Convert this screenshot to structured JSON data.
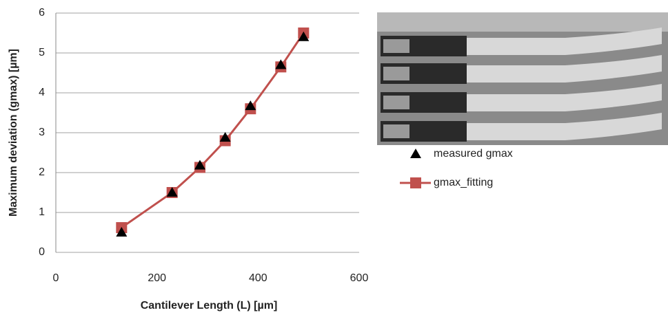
{
  "chart_data": {
    "type": "line",
    "x_label": "Cantilever Length (L) [µm]",
    "y_label": "Maximum deviation (gmax) [µm]",
    "x": [
      130,
      230,
      285,
      335,
      385,
      445,
      490
    ],
    "series": [
      {
        "name": "measured gmax",
        "color": "#000000",
        "marker": "triangle",
        "line": false,
        "values": [
          0.5,
          1.5,
          2.18,
          2.88,
          3.67,
          4.7,
          5.4
        ]
      },
      {
        "name": "gmax_fitting",
        "color": "#c0504d",
        "marker": "square",
        "line": true,
        "values": [
          0.62,
          1.5,
          2.13,
          2.8,
          3.6,
          4.65,
          5.5
        ]
      }
    ],
    "xlim": [
      0,
      600
    ],
    "xticks": [
      0,
      200,
      400,
      600
    ],
    "ylim": [
      0,
      6
    ],
    "yticks": [
      0,
      1,
      2,
      3,
      4,
      5,
      6
    ],
    "grid": true
  }
}
